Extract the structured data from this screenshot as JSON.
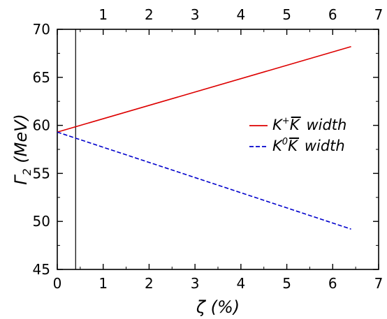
{
  "chart_data": {
    "type": "line",
    "x_axis": {
      "ticks": [
        "0",
        "1",
        "2",
        "3",
        "4",
        "5",
        "6",
        "7"
      ],
      "range": [
        0,
        7
      ]
    },
    "y_axis": {
      "ticks": [
        "45",
        "50",
        "55",
        "60",
        "65",
        "70"
      ],
      "range": [
        45,
        70
      ]
    },
    "top_axis_ticks": [
      "1",
      "2",
      "3",
      "4",
      "5",
      "6",
      "7"
    ],
    "vertical_marker_x": 0.4,
    "series": [
      {
        "name": "K⁺K̄ width",
        "base": "K",
        "sup": "+",
        "bar": "K",
        "suffix": "width",
        "color": "#dd0000",
        "dash": "solid",
        "x": [
          0.0,
          6.4
        ],
        "y": [
          59.3,
          68.2
        ]
      },
      {
        "name": "K⁰K̄ width",
        "base": "K",
        "sup": "0",
        "bar": "K",
        "suffix": "width",
        "color": "#0000cc",
        "dash": "dashed",
        "x": [
          0.0,
          6.4
        ],
        "y": [
          59.3,
          49.2
        ]
      }
    ],
    "legend_position": "right",
    "ylabel": {
      "main": "Γ",
      "sub": "2",
      "rest": " (MeV)"
    },
    "xlabel": "ζ  (%)"
  }
}
